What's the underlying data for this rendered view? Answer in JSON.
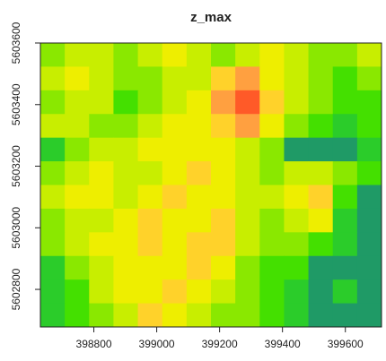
{
  "chart_data": {
    "type": "raster",
    "title": "z_max",
    "xlim": [
      398630,
      399715
    ],
    "ylim": [
      5602678,
      5603600
    ],
    "xticks": [
      398800,
      399000,
      399200,
      399400,
      399600
    ],
    "yticks": [
      5602800,
      5603000,
      5603200,
      5603400,
      5603600
    ],
    "zlim": [
      0,
      10
    ],
    "palette": [
      "#0a2aee",
      "#1f9a66",
      "#2bcc2a",
      "#44e000",
      "#8ae800",
      "#c8ee00",
      "#eeee00",
      "#ffd22a",
      "#ffa040",
      "#ff5a28",
      "#e41010"
    ],
    "z": [
      [
        4,
        5,
        5,
        4,
        5,
        6,
        5,
        4,
        5,
        6,
        5,
        4,
        4,
        5
      ],
      [
        5,
        6,
        5,
        4,
        4,
        5,
        5,
        7,
        8,
        6,
        5,
        4,
        3,
        4
      ],
      [
        4,
        5,
        5,
        3,
        4,
        5,
        6,
        8,
        9,
        7,
        5,
        4,
        3,
        3
      ],
      [
        5,
        5,
        4,
        4,
        5,
        6,
        6,
        7,
        8,
        6,
        4,
        3,
        2,
        3
      ],
      [
        2,
        4,
        5,
        5,
        6,
        6,
        6,
        6,
        5,
        4,
        1,
        1,
        1,
        2
      ],
      [
        4,
        5,
        6,
        5,
        5,
        6,
        7,
        6,
        5,
        4,
        5,
        5,
        4,
        3
      ],
      [
        5,
        6,
        6,
        5,
        6,
        7,
        6,
        6,
        5,
        5,
        6,
        7,
        3,
        1
      ],
      [
        4,
        5,
        5,
        6,
        7,
        6,
        6,
        7,
        5,
        4,
        5,
        6,
        2,
        1
      ],
      [
        4,
        5,
        6,
        6,
        7,
        6,
        7,
        7,
        5,
        4,
        4,
        3,
        2,
        1
      ],
      [
        2,
        4,
        5,
        6,
        6,
        6,
        7,
        6,
        4,
        3,
        3,
        1,
        1,
        1
      ],
      [
        2,
        3,
        5,
        6,
        6,
        7,
        6,
        5,
        4,
        3,
        2,
        1,
        2,
        1
      ],
      [
        2,
        3,
        4,
        5,
        7,
        6,
        5,
        4,
        4,
        3,
        2,
        1,
        1,
        1
      ]
    ]
  }
}
